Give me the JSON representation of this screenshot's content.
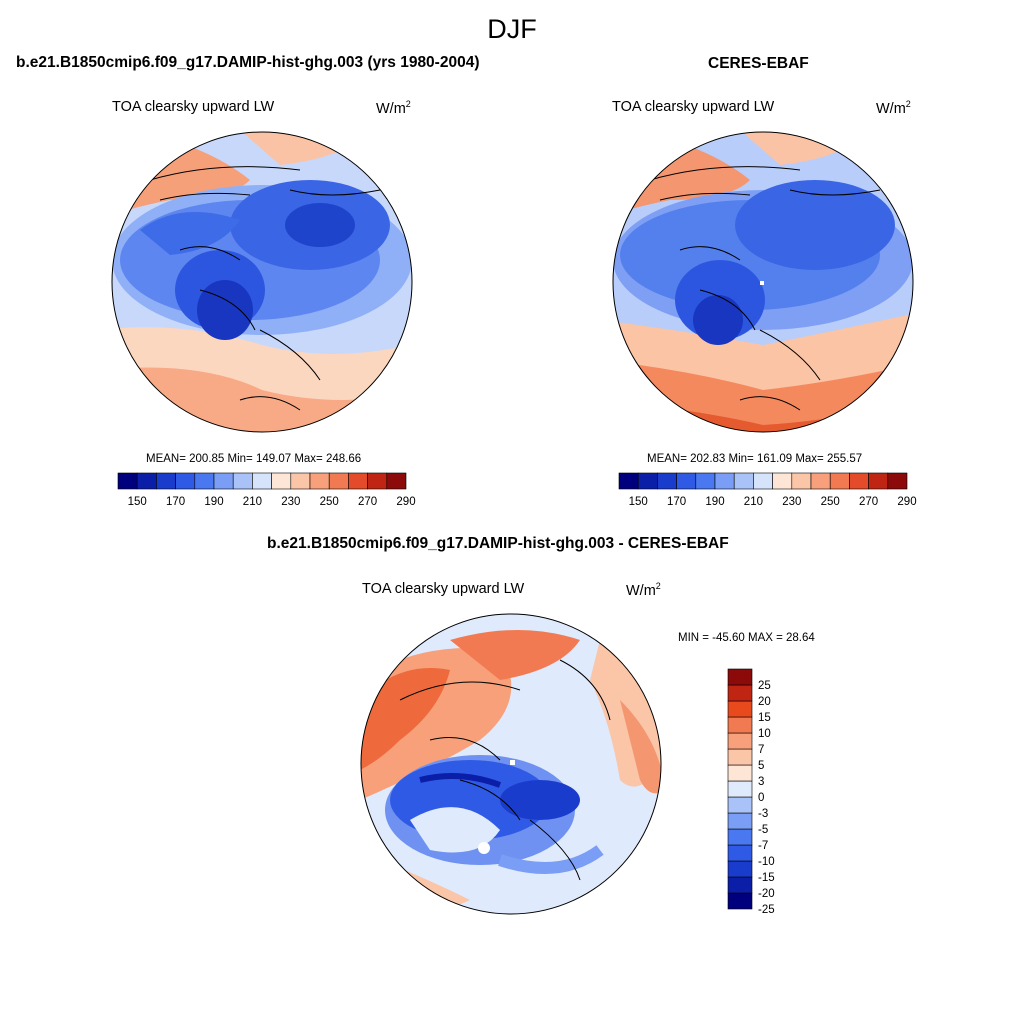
{
  "season": "DJF",
  "panels": [
    {
      "title": "b.e21.B1850cmip6.f09_g17.DAMIP-hist-ghg.003 (yrs 1980-2004)",
      "variable": "TOA clearsky upward LW",
      "units": "W/m",
      "units_exp": "2",
      "stats": "MEAN= 200.85  Min= 149.07  Max= 248.66"
    },
    {
      "title": "CERES-EBAF",
      "variable": "TOA clearsky upward LW",
      "units": "W/m",
      "units_exp": "2",
      "stats": "MEAN= 202.83  Min= 161.09  Max= 255.57"
    }
  ],
  "diff_panel": {
    "title": "b.e21.B1850cmip6.f09_g17.DAMIP-hist-ghg.003 - CERES-EBAF",
    "variable": "TOA clearsky upward LW",
    "units": "W/m",
    "units_exp": "2",
    "minmax": "MIN = -45.60 MAX =  28.64"
  },
  "abs_colorbar": {
    "colors": [
      "#00007f",
      "#0a1ea8",
      "#1a3ccc",
      "#2f5ae6",
      "#4a78f0",
      "#7a9df5",
      "#a9c3f8",
      "#d6e4fb",
      "#fde6d6",
      "#fbc5a8",
      "#f8a07c",
      "#f27a52",
      "#e34b2a",
      "#c02514",
      "#8c0a0a"
    ],
    "tick_labels": [
      "150",
      "170",
      "190",
      "210",
      "230",
      "250",
      "270",
      "290"
    ]
  },
  "diff_colorbar": {
    "colors": [
      "#00007f",
      "#0a1ea8",
      "#1a3ccc",
      "#2f5ae6",
      "#4a78f0",
      "#7a9df5",
      "#a9c3f8",
      "#dfeafc",
      "#fde6d6",
      "#fbc5a8",
      "#f8a07c",
      "#f27a52",
      "#e84a1e",
      "#c02514",
      "#8c0a0a"
    ],
    "tick_labels": [
      "25",
      "20",
      "15",
      "10",
      "7",
      "5",
      "3",
      "0",
      "-3",
      "-5",
      "-7",
      "-10",
      "-15",
      "-20",
      "-25"
    ]
  }
}
